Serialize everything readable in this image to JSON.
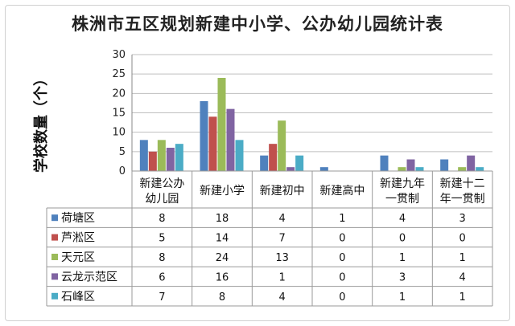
{
  "chart_data": {
    "type": "bar",
    "title": "株洲市五区规划新建中小学、公办幼儿园统计表",
    "ylabel": "学校数量（个）",
    "xlabel": "",
    "ylim": [
      0,
      30
    ],
    "yticks": [
      0,
      5,
      10,
      15,
      20,
      25,
      30
    ],
    "grid": "horizontal",
    "legend": "table-left",
    "categories": [
      [
        "新建公办",
        "幼儿园"
      ],
      [
        "新建小学"
      ],
      [
        "新建初中"
      ],
      [
        "新建高中"
      ],
      [
        "新建九年",
        "一贯制"
      ],
      [
        "新建十二",
        "年一贯制"
      ]
    ],
    "series": [
      {
        "name": "荷塘区",
        "color": "#4f81bd",
        "values": [
          8,
          18,
          4,
          1,
          4,
          3
        ]
      },
      {
        "name": "芦淞区",
        "color": "#c0504d",
        "values": [
          5,
          14,
          7,
          0,
          0,
          0
        ]
      },
      {
        "name": "天元区",
        "color": "#9bbb59",
        "values": [
          8,
          24,
          13,
          0,
          1,
          1
        ]
      },
      {
        "name": "云龙示范区",
        "color": "#8064a2",
        "values": [
          6,
          16,
          1,
          0,
          3,
          4
        ]
      },
      {
        "name": "石峰区",
        "color": "#4bacc6",
        "values": [
          7,
          8,
          4,
          0,
          1,
          1
        ]
      }
    ]
  }
}
